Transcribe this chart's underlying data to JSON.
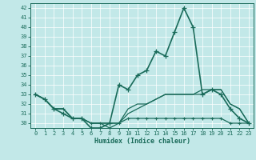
{
  "xlabel": "Humidex (Indice chaleur)",
  "bg_color": "#c2e8e8",
  "line_color": "#1a6b5a",
  "xlim": [
    -0.5,
    23.5
  ],
  "ylim": [
    29.5,
    42.5
  ],
  "xticks": [
    0,
    1,
    2,
    3,
    4,
    5,
    6,
    7,
    8,
    9,
    10,
    11,
    12,
    13,
    14,
    15,
    16,
    17,
    18,
    19,
    20,
    21,
    22,
    23
  ],
  "yticks": [
    30,
    31,
    32,
    33,
    34,
    35,
    36,
    37,
    38,
    39,
    40,
    41,
    42
  ],
  "line_main": {
    "x": [
      0,
      1,
      2,
      3,
      4,
      5,
      6,
      7,
      8,
      9,
      10,
      11,
      12,
      13,
      14,
      15,
      16,
      17,
      18,
      19,
      20,
      21,
      22,
      23
    ],
    "y": [
      33,
      32.5,
      31.5,
      31,
      30.5,
      30.5,
      29.5,
      29.5,
      30,
      34,
      33.5,
      35,
      35.5,
      37.5,
      37,
      39.5,
      42,
      40,
      33,
      33.5,
      33,
      31.5,
      30.5,
      30
    ]
  },
  "line_flat_low": {
    "x": [
      0,
      1,
      2,
      3,
      4,
      5,
      6,
      7,
      8,
      9,
      10,
      11,
      12,
      13,
      14,
      15,
      16,
      17,
      18,
      19,
      20,
      21,
      22,
      23
    ],
    "y": [
      33,
      32.5,
      31.5,
      31.5,
      30.5,
      30.5,
      30,
      30,
      29.5,
      30,
      30.5,
      30.5,
      30.5,
      30.5,
      30.5,
      30.5,
      30.5,
      30.5,
      30.5,
      30.5,
      30.5,
      30,
      30,
      30
    ]
  },
  "line_rising": {
    "x": [
      0,
      1,
      2,
      3,
      4,
      5,
      6,
      7,
      8,
      9,
      10,
      11,
      12,
      13,
      14,
      15,
      16,
      17,
      18,
      19,
      20,
      21,
      22,
      23
    ],
    "y": [
      33,
      32.5,
      31.5,
      31.5,
      30.5,
      30.5,
      30,
      30,
      30,
      30,
      31,
      31.5,
      32,
      32.5,
      33,
      33,
      33,
      33,
      33,
      33.5,
      33.5,
      32,
      31.5,
      30
    ]
  },
  "line_rising2": {
    "x": [
      0,
      1,
      2,
      3,
      4,
      5,
      6,
      7,
      8,
      9,
      10,
      11,
      12,
      13,
      14,
      15,
      16,
      17,
      18,
      19,
      20,
      21,
      22,
      23
    ],
    "y": [
      33,
      32.5,
      31.5,
      31.5,
      30.5,
      30.5,
      30,
      30,
      30,
      30,
      31.5,
      32,
      32,
      32.5,
      33,
      33,
      33,
      33,
      33.5,
      33.5,
      33.5,
      32,
      31.5,
      30
    ]
  }
}
